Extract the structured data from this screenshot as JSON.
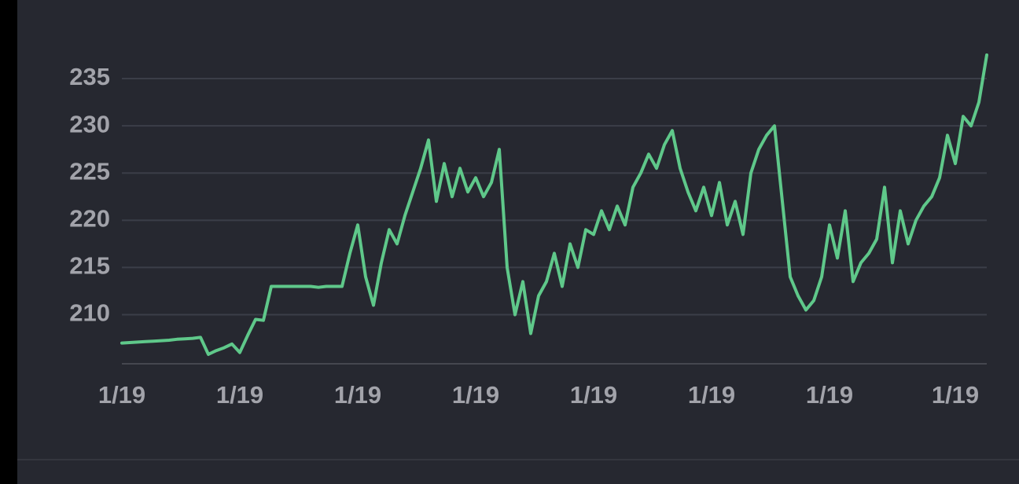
{
  "chart_data": {
    "type": "line",
    "categories": [
      "1/19",
      null,
      null,
      null,
      null,
      null,
      null,
      null,
      null,
      null,
      null,
      null,
      null,
      null,
      null,
      "1/19",
      null,
      null,
      null,
      null,
      null,
      null,
      null,
      null,
      null,
      null,
      null,
      null,
      null,
      null,
      "1/19",
      null,
      null,
      null,
      null,
      null,
      null,
      null,
      null,
      null,
      null,
      null,
      null,
      null,
      null,
      "1/19",
      null,
      null,
      null,
      null,
      null,
      null,
      null,
      null,
      null,
      null,
      null,
      null,
      null,
      null,
      "1/19",
      null,
      null,
      null,
      null,
      null,
      null,
      null,
      null,
      null,
      null,
      null,
      null,
      null,
      null,
      "1/19",
      null,
      null,
      null,
      null,
      null,
      null,
      null,
      null,
      null,
      null,
      null,
      null,
      null,
      null,
      "1/19",
      null,
      null,
      null,
      null,
      null,
      null,
      null,
      null,
      null,
      null,
      null,
      null,
      null,
      null,
      null,
      "1/19",
      null,
      null,
      null,
      null
    ],
    "series": [
      {
        "color": "#5fc88a",
        "values": [
          207.0,
          207.05,
          207.1,
          207.15,
          207.2,
          207.25,
          207.3,
          207.4,
          207.45,
          207.5,
          207.6,
          205.8,
          206.2,
          206.5,
          206.9,
          206.0,
          207.8,
          209.5,
          209.4,
          213.0,
          213.0,
          213.0,
          213.0,
          213.0,
          213.0,
          212.9,
          213.0,
          213.0,
          213.0,
          216.5,
          219.5,
          214.0,
          211.0,
          215.5,
          219.0,
          217.5,
          220.5,
          223.0,
          225.5,
          228.5,
          222.0,
          226.0,
          222.5,
          225.5,
          223.0,
          224.5,
          222.5,
          224.0,
          227.5,
          215.0,
          210.0,
          213.5,
          208.0,
          212.0,
          213.5,
          216.5,
          213.0,
          217.5,
          215.0,
          219.0,
          218.5,
          221.0,
          219.0,
          221.5,
          219.5,
          223.5,
          225.0,
          227.0,
          225.5,
          228.0,
          229.5,
          225.5,
          223.0,
          221.0,
          223.5,
          220.5,
          224.0,
          219.5,
          222.0,
          218.5,
          225.0,
          227.5,
          229.0,
          230.0,
          222.0,
          214.0,
          212.0,
          210.5,
          211.5,
          214.0,
          219.5,
          216.0,
          221.0,
          213.5,
          215.5,
          216.5,
          218.0,
          223.5,
          215.5,
          221.0,
          217.5,
          220.0,
          221.5,
          222.5,
          224.5,
          229.0,
          226.0,
          231.0,
          230.0,
          232.5,
          237.5
        ]
      }
    ],
    "ylim": [
      204.8,
      238.5
    ],
    "yticks": [
      210,
      215,
      220,
      225,
      230,
      235
    ],
    "grid": true
  }
}
